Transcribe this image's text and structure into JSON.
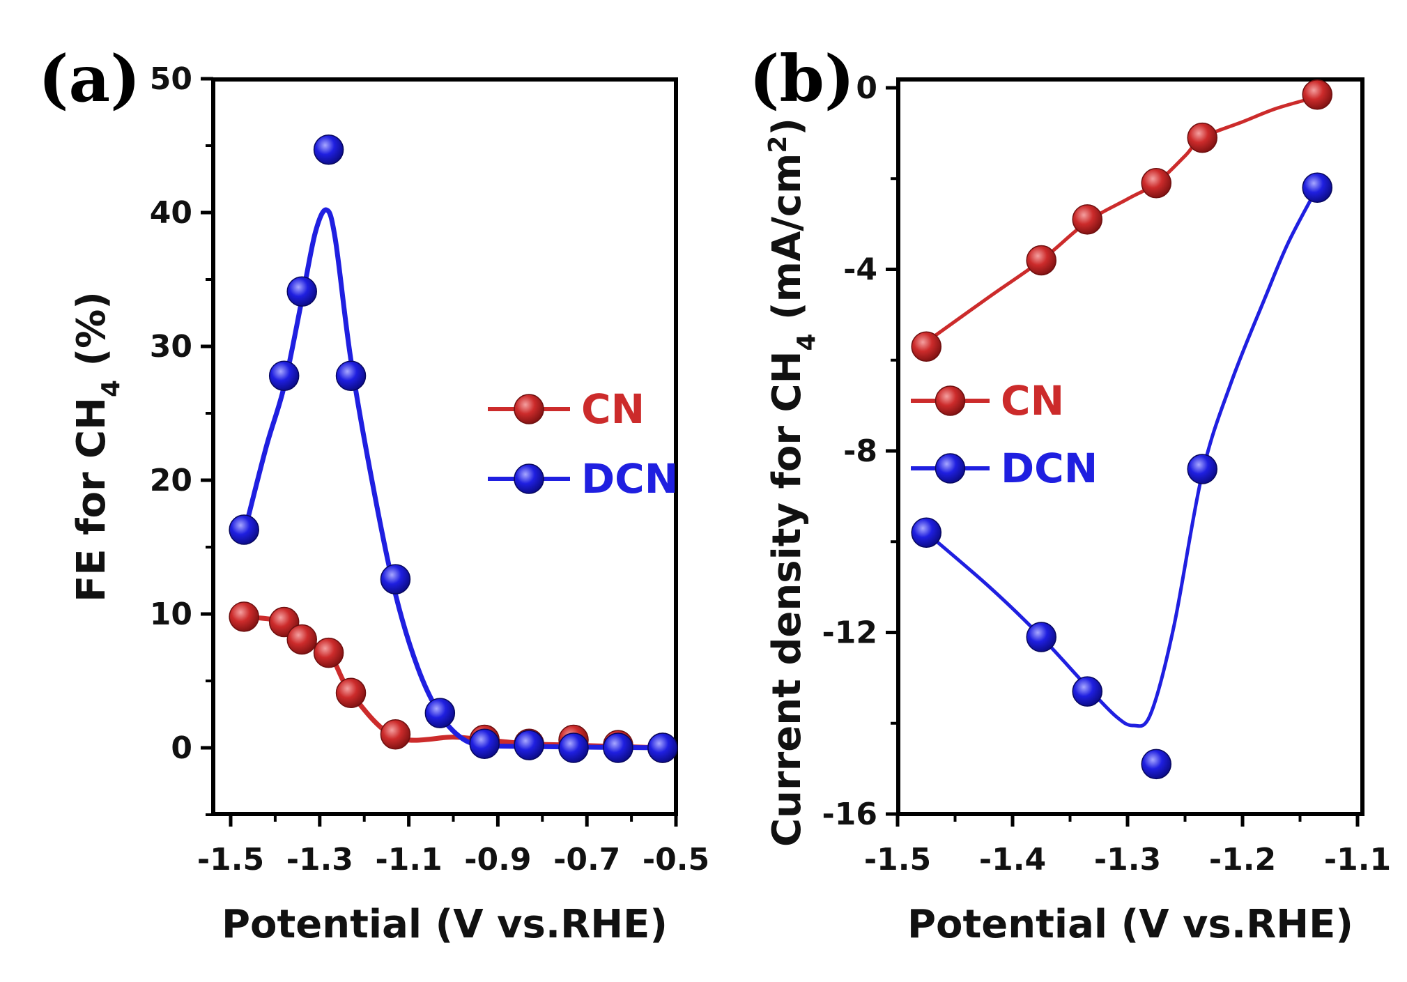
{
  "figure": {
    "colors": {
      "CN": "#cc2b2b",
      "DCN": "#1f1fe0"
    },
    "panels": [
      {
        "id": "a",
        "panel_label": "(a)",
        "chart_data": {
          "type": "scatter",
          "title": "",
          "xlabel": "Potential (V vs.RHE)",
          "ylabel": {
            "prefix": "FE for CH",
            "sub": "4",
            "suffix": " (%)"
          },
          "xlim": [
            -1.5,
            -0.5
          ],
          "ylim": [
            -5,
            50
          ],
          "xticks": [
            "-1.5",
            "-1.3",
            "-1.1",
            "-0.9",
            "-0.7",
            "-0.5"
          ],
          "yticks": [
            "0",
            "10",
            "20",
            "30",
            "40",
            "50"
          ],
          "legend": {
            "position": "right-middle"
          },
          "series": [
            {
              "name": "CN",
              "points": [
                [
                  -1.47,
                  9.8
                ],
                [
                  -1.38,
                  9.4
                ],
                [
                  -1.34,
                  8.1
                ],
                [
                  -1.28,
                  7.1
                ],
                [
                  -1.23,
                  4.1
                ],
                [
                  -1.13,
                  1.0
                ],
                [
                  -0.93,
                  0.6
                ],
                [
                  -0.83,
                  0.3
                ],
                [
                  -0.73,
                  0.6
                ],
                [
                  -0.63,
                  0.2
                ],
                [
                  -0.53,
                  0.0
                ]
              ],
              "fit": [
                [
                  -1.47,
                  9.8
                ],
                [
                  -1.38,
                  9.4
                ],
                [
                  -1.34,
                  8.1
                ],
                [
                  -1.28,
                  7.1
                ],
                [
                  -1.23,
                  4.1
                ],
                [
                  -1.13,
                  0.8
                ],
                [
                  -1.0,
                  0.8
                ],
                [
                  -0.93,
                  0.6
                ],
                [
                  -0.83,
                  0.3
                ],
                [
                  -0.73,
                  0.2
                ],
                [
                  -0.63,
                  0.1
                ],
                [
                  -0.53,
                  0.0
                ]
              ]
            },
            {
              "name": "DCN",
              "points": [
                [
                  -1.47,
                  16.3
                ],
                [
                  -1.38,
                  27.8
                ],
                [
                  -1.34,
                  34.1
                ],
                [
                  -1.28,
                  44.7
                ],
                [
                  -1.23,
                  27.8
                ],
                [
                  -1.13,
                  12.6
                ],
                [
                  -1.03,
                  2.6
                ],
                [
                  -0.93,
                  0.3
                ],
                [
                  -0.83,
                  0.2
                ],
                [
                  -0.73,
                  0.0
                ],
                [
                  -0.63,
                  0.0
                ],
                [
                  -0.53,
                  0.0
                ]
              ],
              "fit": [
                [
                  -1.47,
                  16.0
                ],
                [
                  -1.42,
                  22.5
                ],
                [
                  -1.38,
                  27.0
                ],
                [
                  -1.34,
                  33.5
                ],
                [
                  -1.31,
                  38.5
                ],
                [
                  -1.285,
                  40.2
                ],
                [
                  -1.265,
                  38.0
                ],
                [
                  -1.23,
                  29.0
                ],
                [
                  -1.18,
                  19.5
                ],
                [
                  -1.13,
                  11.5
                ],
                [
                  -1.08,
                  6.0
                ],
                [
                  -1.03,
                  2.5
                ],
                [
                  -0.98,
                  0.7
                ],
                [
                  -0.93,
                  0.2
                ],
                [
                  -0.83,
                  0.1
                ],
                [
                  -0.53,
                  0.0
                ]
              ]
            }
          ]
        }
      },
      {
        "id": "b",
        "panel_label": "(b)",
        "chart_data": {
          "type": "scatter",
          "title": "",
          "xlabel": "Potential (V vs.RHE)",
          "ylabel": {
            "prefix": "Current density for CH",
            "sub": "4",
            "middle": " (mA/cm",
            "sup": "2",
            "suffix": ")"
          },
          "xlim": [
            -1.5,
            -1.1
          ],
          "ylim": [
            -16,
            0.2
          ],
          "xticks": [
            "-1.5",
            "-1.4",
            "-1.3",
            "-1.2",
            "-1.1"
          ],
          "yticks": [
            "0",
            "-4",
            "-8",
            "-12",
            "-16"
          ],
          "legend": {
            "position": "left-middle"
          },
          "series": [
            {
              "name": "CN",
              "points": [
                [
                  -1.475,
                  -5.7
                ],
                [
                  -1.375,
                  -3.8
                ],
                [
                  -1.335,
                  -2.9
                ],
                [
                  -1.275,
                  -2.1
                ],
                [
                  -1.235,
                  -1.1
                ],
                [
                  -1.135,
                  -0.15
                ]
              ],
              "fit": [
                [
                  -1.475,
                  -5.6
                ],
                [
                  -1.42,
                  -4.6
                ],
                [
                  -1.375,
                  -3.8
                ],
                [
                  -1.335,
                  -2.95
                ],
                [
                  -1.3,
                  -2.45
                ],
                [
                  -1.275,
                  -2.1
                ],
                [
                  -1.25,
                  -1.5
                ],
                [
                  -1.235,
                  -1.1
                ],
                [
                  -1.2,
                  -0.75
                ],
                [
                  -1.17,
                  -0.45
                ],
                [
                  -1.135,
                  -0.2
                ]
              ]
            },
            {
              "name": "DCN",
              "points": [
                [
                  -1.475,
                  -9.8
                ],
                [
                  -1.375,
                  -12.1
                ],
                [
                  -1.335,
                  -13.3
                ],
                [
                  -1.275,
                  -14.9
                ],
                [
                  -1.235,
                  -8.4
                ],
                [
                  -1.135,
                  -2.2
                ]
              ],
              "fit": [
                [
                  -1.475,
                  -9.8
                ],
                [
                  -1.42,
                  -11.0
                ],
                [
                  -1.375,
                  -12.1
                ],
                [
                  -1.335,
                  -13.2
                ],
                [
                  -1.31,
                  -13.85
                ],
                [
                  -1.295,
                  -14.05
                ],
                [
                  -1.28,
                  -13.8
                ],
                [
                  -1.26,
                  -11.9
                ],
                [
                  -1.235,
                  -8.5
                ],
                [
                  -1.21,
                  -6.5
                ],
                [
                  -1.18,
                  -4.6
                ],
                [
                  -1.16,
                  -3.4
                ],
                [
                  -1.135,
                  -2.2
                ]
              ]
            }
          ]
        }
      }
    ]
  }
}
